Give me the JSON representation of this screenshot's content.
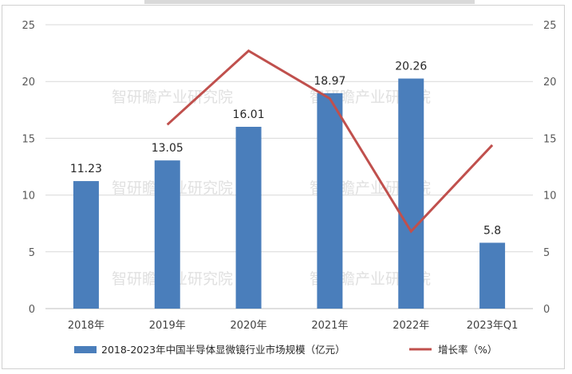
{
  "watermark": "智研瞻产业研究院",
  "chart_data": {
    "type": "bar",
    "categories": [
      "2018年",
      "2019年",
      "2020年",
      "2021年",
      "2022年",
      "2023年Q1"
    ],
    "series": [
      {
        "name": "2018-2023年中国半导体显微镜行业市场规模（亿元）",
        "type": "bar",
        "axis": "left",
        "values": [
          11.23,
          13.05,
          16.01,
          18.97,
          20.26,
          5.8
        ],
        "labels": [
          "11.23",
          "13.05",
          "16.01",
          "18.97",
          "20.26",
          "5.8"
        ],
        "color": "#4a7ebb"
      },
      {
        "name": "增长率（%）",
        "type": "line",
        "axis": "right",
        "values": [
          null,
          16.2,
          22.7,
          18.5,
          6.8,
          14.4
        ],
        "color": "#c0504d"
      }
    ],
    "y_left": {
      "min": 0,
      "max": 25,
      "ticks": [
        0,
        5,
        10,
        15,
        20,
        25
      ]
    },
    "y_right": {
      "min": 0,
      "max": 25,
      "ticks": [
        0,
        5,
        10,
        15,
        20,
        25
      ]
    },
    "legend_position": "bottom",
    "grid": true
  }
}
